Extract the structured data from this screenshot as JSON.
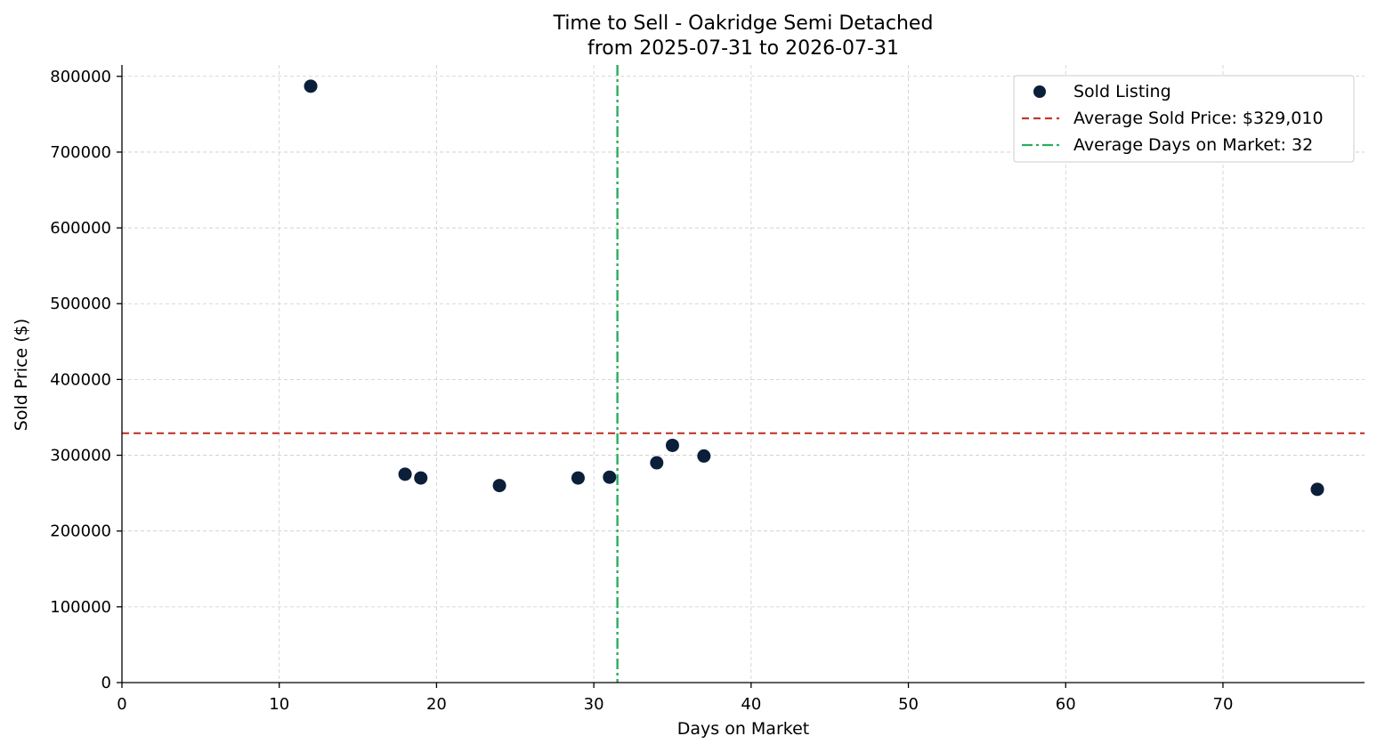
{
  "chart_data": {
    "type": "scatter",
    "title": "Time to Sell - Oakridge Semi Detached",
    "subtitle": "from 2025-07-31 to 2026-07-31",
    "xlabel": "Days on Market",
    "ylabel": "Sold Price ($)",
    "xlim": [
      0,
      79
    ],
    "ylim": [
      0,
      815000
    ],
    "x_ticks": [
      0,
      10,
      20,
      30,
      40,
      50,
      60,
      70
    ],
    "y_ticks": [
      0,
      100000,
      200000,
      300000,
      400000,
      500000,
      600000,
      700000,
      800000
    ],
    "grid": true,
    "legend_position": "top-right",
    "series": [
      {
        "name": "Sold Listing",
        "color": "#0b1f3a",
        "points": [
          {
            "x": 12,
            "y": 787000
          },
          {
            "x": 18,
            "y": 275000
          },
          {
            "x": 19,
            "y": 270000
          },
          {
            "x": 24,
            "y": 260000
          },
          {
            "x": 29,
            "y": 270000
          },
          {
            "x": 31,
            "y": 271000
          },
          {
            "x": 34,
            "y": 290000
          },
          {
            "x": 35,
            "y": 313000
          },
          {
            "x": 37,
            "y": 299000
          },
          {
            "x": 76,
            "y": 255000
          }
        ]
      }
    ],
    "reference_lines": [
      {
        "name": "Average Sold Price: $329,010",
        "orientation": "horizontal",
        "value": 329010,
        "color": "#c0392b",
        "style": "dashed"
      },
      {
        "name": "Average Days on Market: 32",
        "orientation": "vertical",
        "value": 31.5,
        "color": "#27ae60",
        "style": "dashdot"
      }
    ]
  }
}
